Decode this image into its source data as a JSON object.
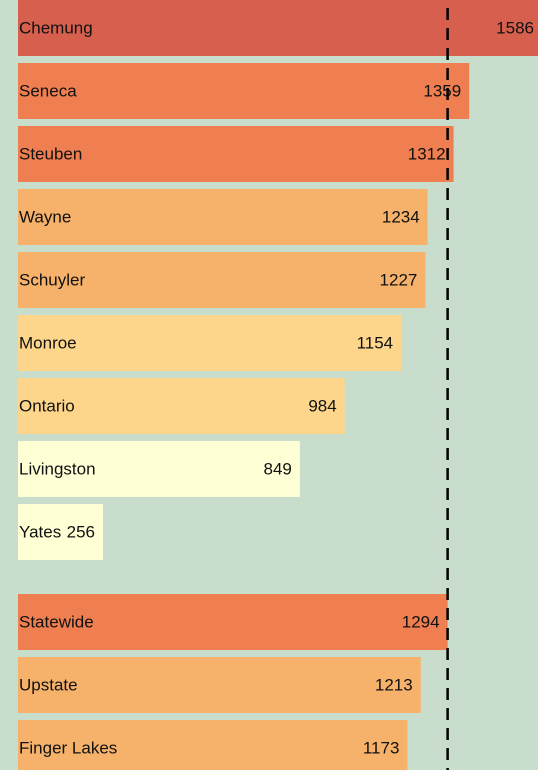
{
  "chart_data": [
    {
      "type": "bar",
      "categories": [
        "Chemung",
        "Seneca",
        "Steuben",
        "Wayne",
        "Schuyler",
        "Monroe",
        "Ontario",
        "Livingston",
        "Yates"
      ],
      "values": [
        1586,
        1359,
        1312,
        1234,
        1227,
        1154,
        984,
        849,
        256
      ],
      "colors": [
        "#d6604d",
        "#ef7e50",
        "#ef7e50",
        "#f6b26b",
        "#f6b26b",
        "#fdd68c",
        "#fdd68c",
        "#ffffd6",
        "#ffffd6"
      ]
    },
    {
      "type": "bar",
      "categories": [
        "Statewide",
        "Upstate",
        "Finger Lakes"
      ],
      "values": [
        1294,
        1213,
        1173
      ],
      "colors": [
        "#ef7e50",
        "#f6b26b",
        "#f6b26b"
      ]
    }
  ]
}
